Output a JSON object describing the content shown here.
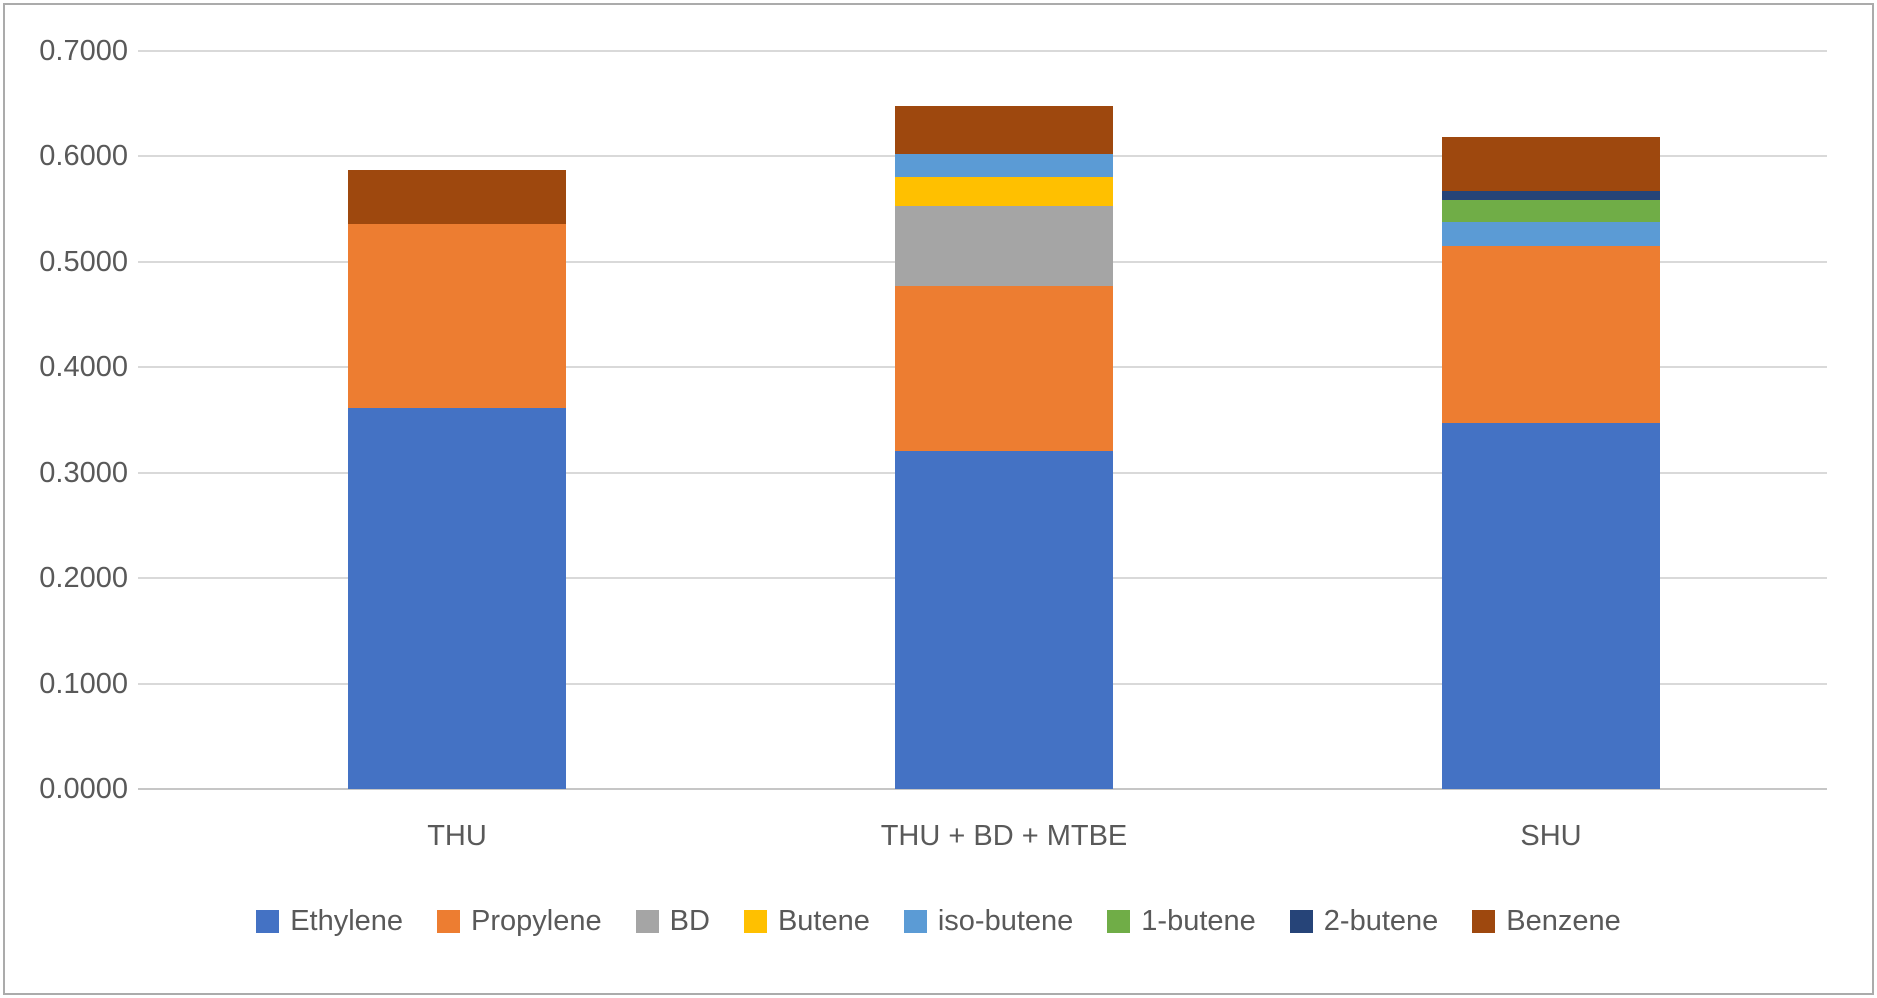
{
  "chart_data": {
    "type": "bar",
    "stacked": true,
    "title": "",
    "xlabel": "",
    "ylabel": "",
    "categories": [
      "THU",
      "THU + BD + MTBE",
      "SHU"
    ],
    "series": [
      {
        "name": "Ethylene",
        "color": "#4472C4",
        "values": [
          0.361,
          0.32,
          0.347
        ]
      },
      {
        "name": "Propylene",
        "color": "#ED7D31",
        "values": [
          0.175,
          0.157,
          0.168
        ]
      },
      {
        "name": "BD",
        "color": "#A5A5A5",
        "values": [
          0.0,
          0.076,
          0.0
        ]
      },
      {
        "name": "Butene",
        "color": "#FFC000",
        "values": [
          0.0,
          0.027,
          0.0
        ]
      },
      {
        "name": "iso-butene",
        "color": "#5B9BD5",
        "values": [
          0.0,
          0.022,
          0.022
        ]
      },
      {
        "name": "1-butene",
        "color": "#70AD47",
        "values": [
          0.0,
          0.0,
          0.021
        ]
      },
      {
        "name": "2-butene",
        "color": "#264478",
        "values": [
          0.0,
          0.0,
          0.009
        ]
      },
      {
        "name": "Benzene",
        "color": "#9E480E",
        "values": [
          0.051,
          0.045,
          0.051
        ]
      }
    ],
    "bar_totals": [
      0.587,
      0.647,
      0.618
    ],
    "ylim": [
      0.0,
      0.7
    ],
    "ytick_step": 0.1,
    "ytick_labels": [
      "0.0000",
      "0.1000",
      "0.2000",
      "0.3000",
      "0.4000",
      "0.5000",
      "0.6000",
      "0.7000"
    ],
    "grid": true,
    "legend_position": "bottom",
    "colors": {
      "text": "#595959",
      "gridline": "#D9D9D9",
      "axis_line": "#C6C6C6",
      "frame_border": "#ABABAB",
      "background": "#FFFFFF"
    }
  }
}
